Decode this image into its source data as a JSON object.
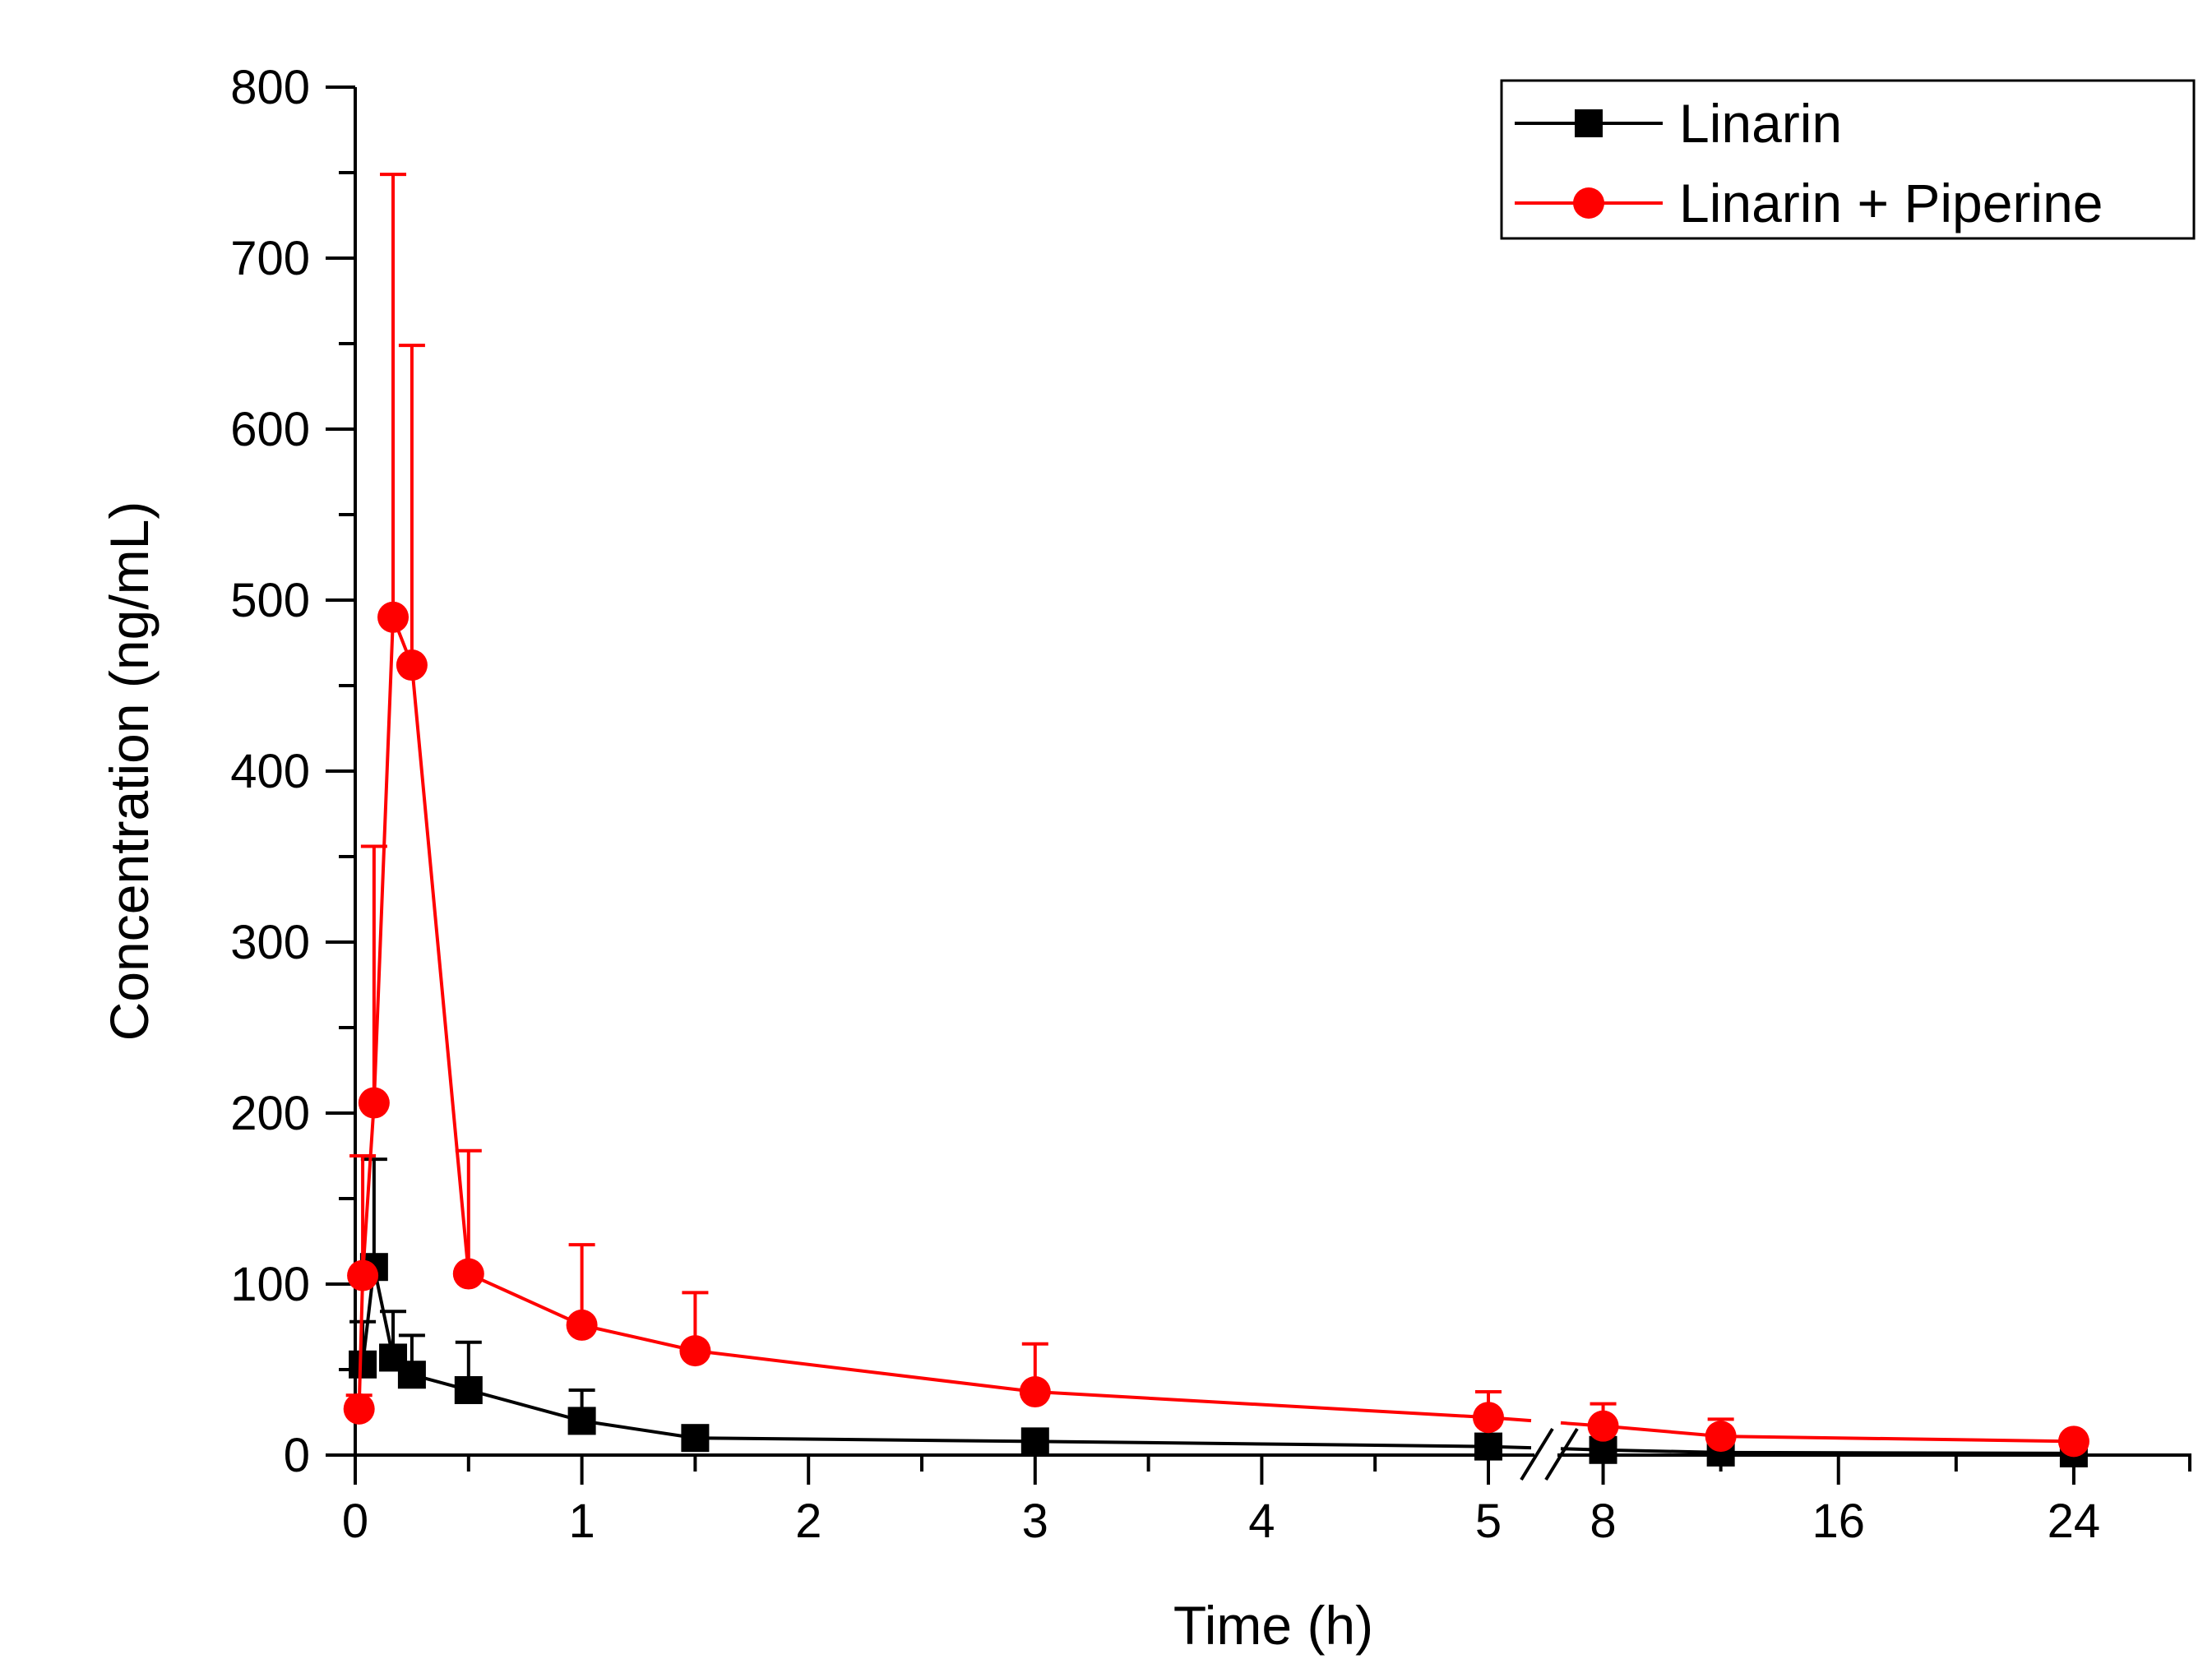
{
  "chart_data": {
    "type": "line",
    "xlabel": "Time (h)",
    "ylabel": "Concentration (ng/mL)",
    "ylim": [
      0,
      800
    ],
    "yticks": [
      0,
      100,
      200,
      300,
      400,
      500,
      600,
      700,
      800
    ],
    "x_segments": [
      {
        "range": [
          0,
          5
        ],
        "ticks": [
          0,
          1,
          2,
          3,
          4,
          5
        ],
        "tick_labels": [
          "0",
          "1",
          "2",
          "3",
          "4",
          "5"
        ]
      },
      {
        "range": [
          6,
          28
        ],
        "ticks": [
          8,
          16,
          24
        ],
        "tick_labels": [
          "8",
          "16",
          "24"
        ]
      }
    ],
    "axis_break": "between 5 and 8",
    "legend_position": "top-right",
    "series": [
      {
        "name": "Linarin",
        "color": "#000000",
        "marker": "square",
        "x": [
          0.033,
          0.083,
          0.167,
          0.25,
          0.5,
          1,
          1.5,
          3,
          5,
          8,
          12,
          24
        ],
        "y": [
          53,
          110,
          57,
          47,
          38,
          20,
          10,
          8,
          5,
          3,
          1.5,
          1
        ],
        "err": [
          25,
          63,
          27,
          23,
          28,
          18,
          3,
          2,
          2,
          2,
          1,
          1
        ]
      },
      {
        "name": "Linarin + Piperine",
        "color": "#ff0000",
        "marker": "circle",
        "x": [
          0.017,
          0.033,
          0.083,
          0.167,
          0.25,
          0.5,
          1,
          1.5,
          3,
          5,
          8,
          12,
          24
        ],
        "y": [
          27,
          105,
          206,
          490,
          462,
          106,
          76,
          61,
          37,
          22,
          17,
          11,
          8
        ],
        "err": [
          8,
          70,
          150,
          259,
          187,
          72,
          47,
          34,
          28,
          15,
          13,
          10,
          4
        ]
      }
    ]
  }
}
